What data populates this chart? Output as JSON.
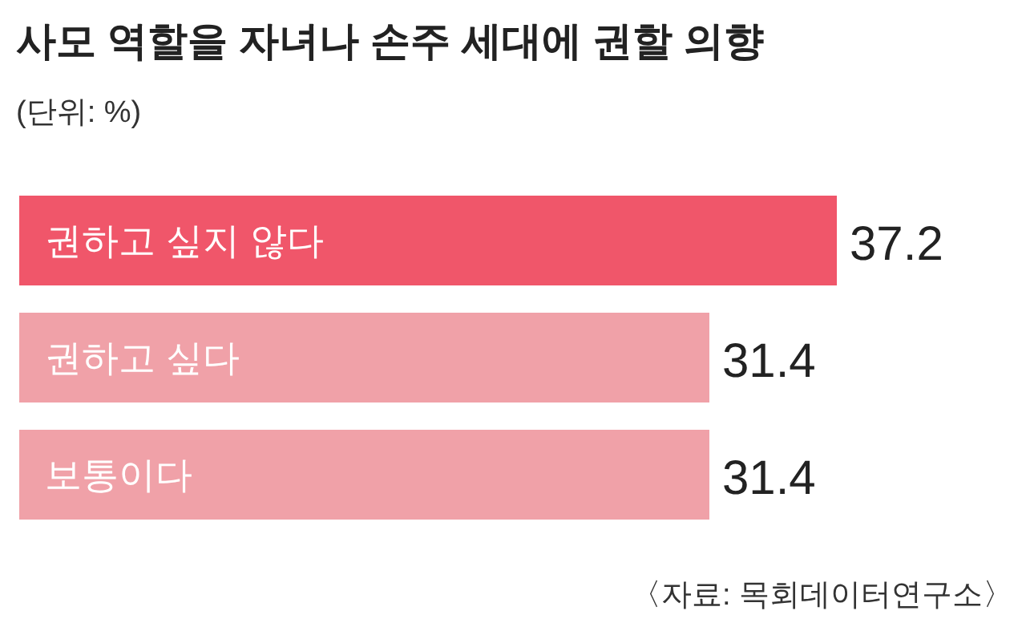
{
  "chart_data": {
    "type": "bar",
    "orientation": "horizontal",
    "title": "사모 역할을 자녀나 손주 세대에 권할 의향",
    "subtitle": "(단위: %)",
    "categories": [
      "권하고 싶지 않다",
      "권하고 싶다",
      "보통이다"
    ],
    "values": [
      37.2,
      31.4,
      31.4
    ],
    "colors": [
      "#f0566a",
      "#f0a1a8",
      "#f0a1a8"
    ],
    "data_labels": true,
    "annotations": [
      "〈자료: 목회데이터연구소〉"
    ]
  }
}
